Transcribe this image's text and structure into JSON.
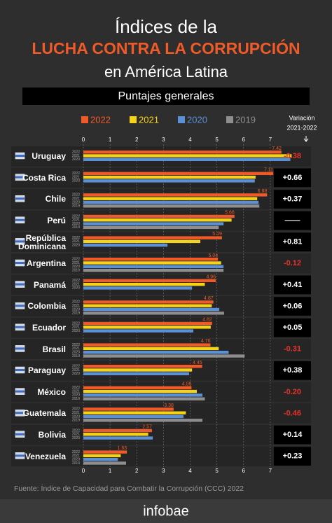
{
  "chart_data": {
    "type": "bar",
    "orientation": "horizontal",
    "title": "Índices de la",
    "title_highlight": "LUCHA CONTRA LA CORRUPCIÓN",
    "title_line3": "en América Latina",
    "subtitle": "Puntajes generales",
    "categories": [
      "Uruguay",
      "Costa Rica",
      "Chile",
      "Perú",
      "República Dominicana",
      "Argentina",
      "Panamá",
      "Colombia",
      "Ecuador",
      "Brasil",
      "Paraguay",
      "México",
      "Guatemala",
      "Bolivia",
      "Venezuela"
    ],
    "series": [
      {
        "name": "2022",
        "color": "#f05a28",
        "values": [
          7.42,
          7.11,
          6.88,
          5.66,
          5.19,
          5.04,
          4.96,
          4.87,
          4.82,
          4.76,
          4.45,
          4.05,
          3.38,
          2.57,
          1.63
        ]
      },
      {
        "name": "2021",
        "color": "#f5d316",
        "values": [
          7.8,
          6.45,
          6.51,
          5.55,
          4.38,
          5.16,
          4.55,
          4.81,
          4.77,
          5.07,
          4.07,
          4.25,
          3.84,
          2.43,
          1.4
        ]
      },
      {
        "name": "2020",
        "color": "#5b8fd6",
        "values": [
          7.75,
          6.42,
          6.56,
          5.25,
          3.15,
          5.25,
          4.07,
          5.09,
          4.12,
          5.44,
          3.96,
          4.46,
          3.75,
          2.6,
          1.29
        ]
      },
      {
        "name": "2019",
        "color": "#8e8e8e",
        "values": [
          null,
          null,
          6.59,
          5.07,
          null,
          5.25,
          null,
          5.27,
          null,
          6.04,
          null,
          4.55,
          4.46,
          null,
          1.6
        ]
      }
    ],
    "xlim": [
      0,
      8
    ],
    "xticks": [
      0,
      1,
      2,
      3,
      4,
      5,
      6,
      7
    ],
    "grid": true,
    "variation": {
      "title": "Variación",
      "period": "2021-2022",
      "values": [
        -0.38,
        0.66,
        0.37,
        null,
        0.81,
        -0.12,
        0.41,
        0.06,
        0.05,
        -0.31,
        0.38,
        -0.2,
        -0.46,
        0.14,
        0.23
      ],
      "value_labels": [
        "-0.38",
        "+0.66",
        "+0.37",
        "——",
        "+0.81",
        "-0.12",
        "+0.41",
        "+0.06",
        "+0.05",
        "-0.31",
        "+0.38",
        "-0.20",
        "-0.46",
        "+0.14",
        "+0.23"
      ]
    },
    "source": "Fuente: Índice de Capacidad para Combatir la Corrupción (CCC) 2022",
    "brand": "infobae"
  }
}
